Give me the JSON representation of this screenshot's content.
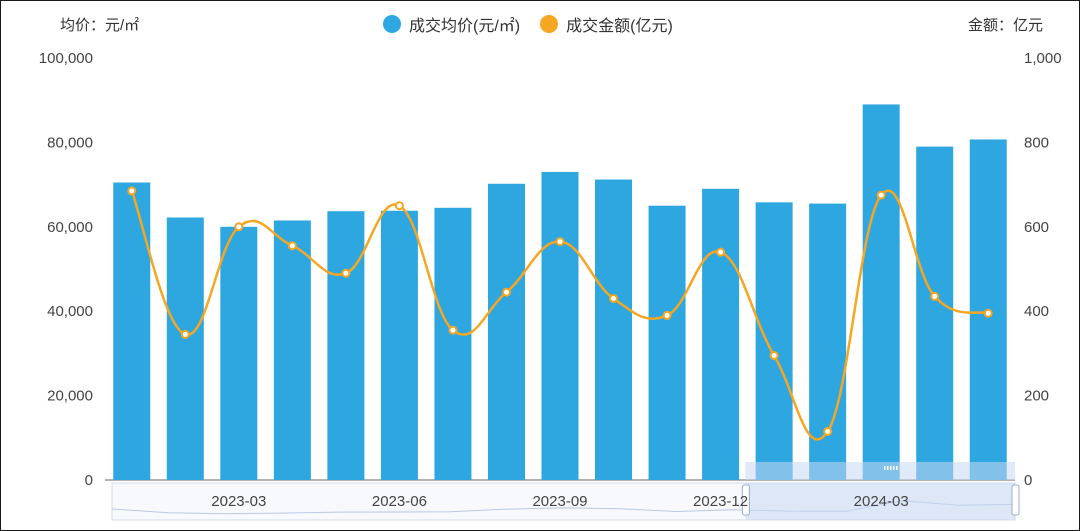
{
  "axis_units": {
    "left": "均价：元/㎡",
    "right": "金额：亿元"
  },
  "legend": [
    {
      "label": "成交均价(元/㎡)",
      "color": "#2ea7e0"
    },
    {
      "label": "成交金额(亿元)",
      "color": "#f5a623"
    }
  ],
  "chart_data": {
    "type": "bar",
    "x_ticks": [
      "2023-03",
      "2023-06",
      "2023-09",
      "2023-12",
      "2024-03"
    ],
    "categories": [
      "2023-01",
      "2023-02",
      "2023-03",
      "2023-04",
      "2023-05",
      "2023-06",
      "2023-07",
      "2023-08",
      "2023-09",
      "2023-10",
      "2023-11",
      "2023-12",
      "2024-01",
      "2024-02",
      "2024-03",
      "2024-04",
      "2024-05"
    ],
    "series": [
      {
        "name": "成交均价(元/㎡)",
        "type": "bar",
        "axis": "left",
        "color": "#2ea7e0",
        "values": [
          70500,
          62200,
          60000,
          61500,
          63700,
          63800,
          64500,
          70200,
          73000,
          71200,
          65000,
          69000,
          65800,
          65500,
          89000,
          79000,
          80700
        ]
      },
      {
        "name": "成交金额(亿元)",
        "type": "line",
        "axis": "right",
        "color": "#f5a623",
        "values": [
          685,
          345,
          600,
          555,
          490,
          650,
          355,
          445,
          565,
          430,
          390,
          540,
          295,
          115,
          675,
          435,
          395
        ]
      }
    ],
    "left_axis": {
      "min": 0,
      "max": 100000,
      "ticks": [
        "0",
        "20,000",
        "40,000",
        "60,000",
        "80,000",
        "100,000"
      ]
    },
    "right_axis": {
      "min": 0,
      "max": 1000,
      "ticks": [
        "0",
        "200",
        "400",
        "600",
        "800",
        "1,000"
      ]
    },
    "grid": false,
    "legend_position": "top-center",
    "data_zoom": {
      "visible": true,
      "selected_start": "2024-01",
      "selected_end": "2024-05"
    }
  }
}
